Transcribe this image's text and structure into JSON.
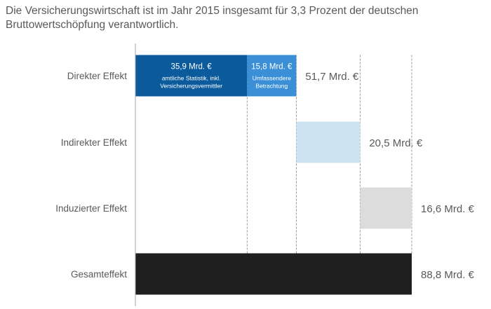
{
  "title": {
    "line1": "Die Versicherungswirtschaft ist im Jahr 2015 insgesamt für 3,3 Prozent der deutschen",
    "line2": "Bruttowertschöpfung verantwortlich."
  },
  "colors": {
    "dark_blue": "#0a5a9c",
    "mid_blue": "#3b8fd6",
    "light_blue": "#cde3f1",
    "gray": "#dcdcdc",
    "black": "#1f1f1f",
    "text": "#595959"
  },
  "chart_data": {
    "type": "bar",
    "subtype": "waterfall-horizontal",
    "unit": "Mrd. €",
    "categories": [
      "Direkter Effekt",
      "Indirekter Effekt",
      "Induzierter Effekt",
      "Gesamteffekt"
    ],
    "segments": [
      {
        "row": 0,
        "start": 0,
        "value": 35.9,
        "color": "dark_blue",
        "label": "35,9 Mrd. €",
        "sublabel1": "amtliche Statistik, inkl.",
        "sublabel2": "Versicherungsvermittler"
      },
      {
        "row": 0,
        "start": 35.9,
        "value": 15.8,
        "color": "mid_blue",
        "label": "15,8 Mrd. €",
        "sublabel1": "Umfassendere",
        "sublabel2": "Betrachtung"
      },
      {
        "row": 1,
        "start": 51.7,
        "value": 20.5,
        "color": "light_blue"
      },
      {
        "row": 2,
        "start": 72.2,
        "value": 16.6,
        "color": "gray"
      },
      {
        "row": 3,
        "start": 0,
        "value": 88.8,
        "color": "black"
      }
    ],
    "totals": [
      "51,7 Mrd. €",
      "20,5 Mrd. €",
      "16,6 Mrd. €",
      "88,8 Mrd. €"
    ],
    "xlim": [
      0,
      88.8
    ],
    "connectors_at": [
      35.9,
      51.7,
      72.2,
      88.8
    ]
  }
}
